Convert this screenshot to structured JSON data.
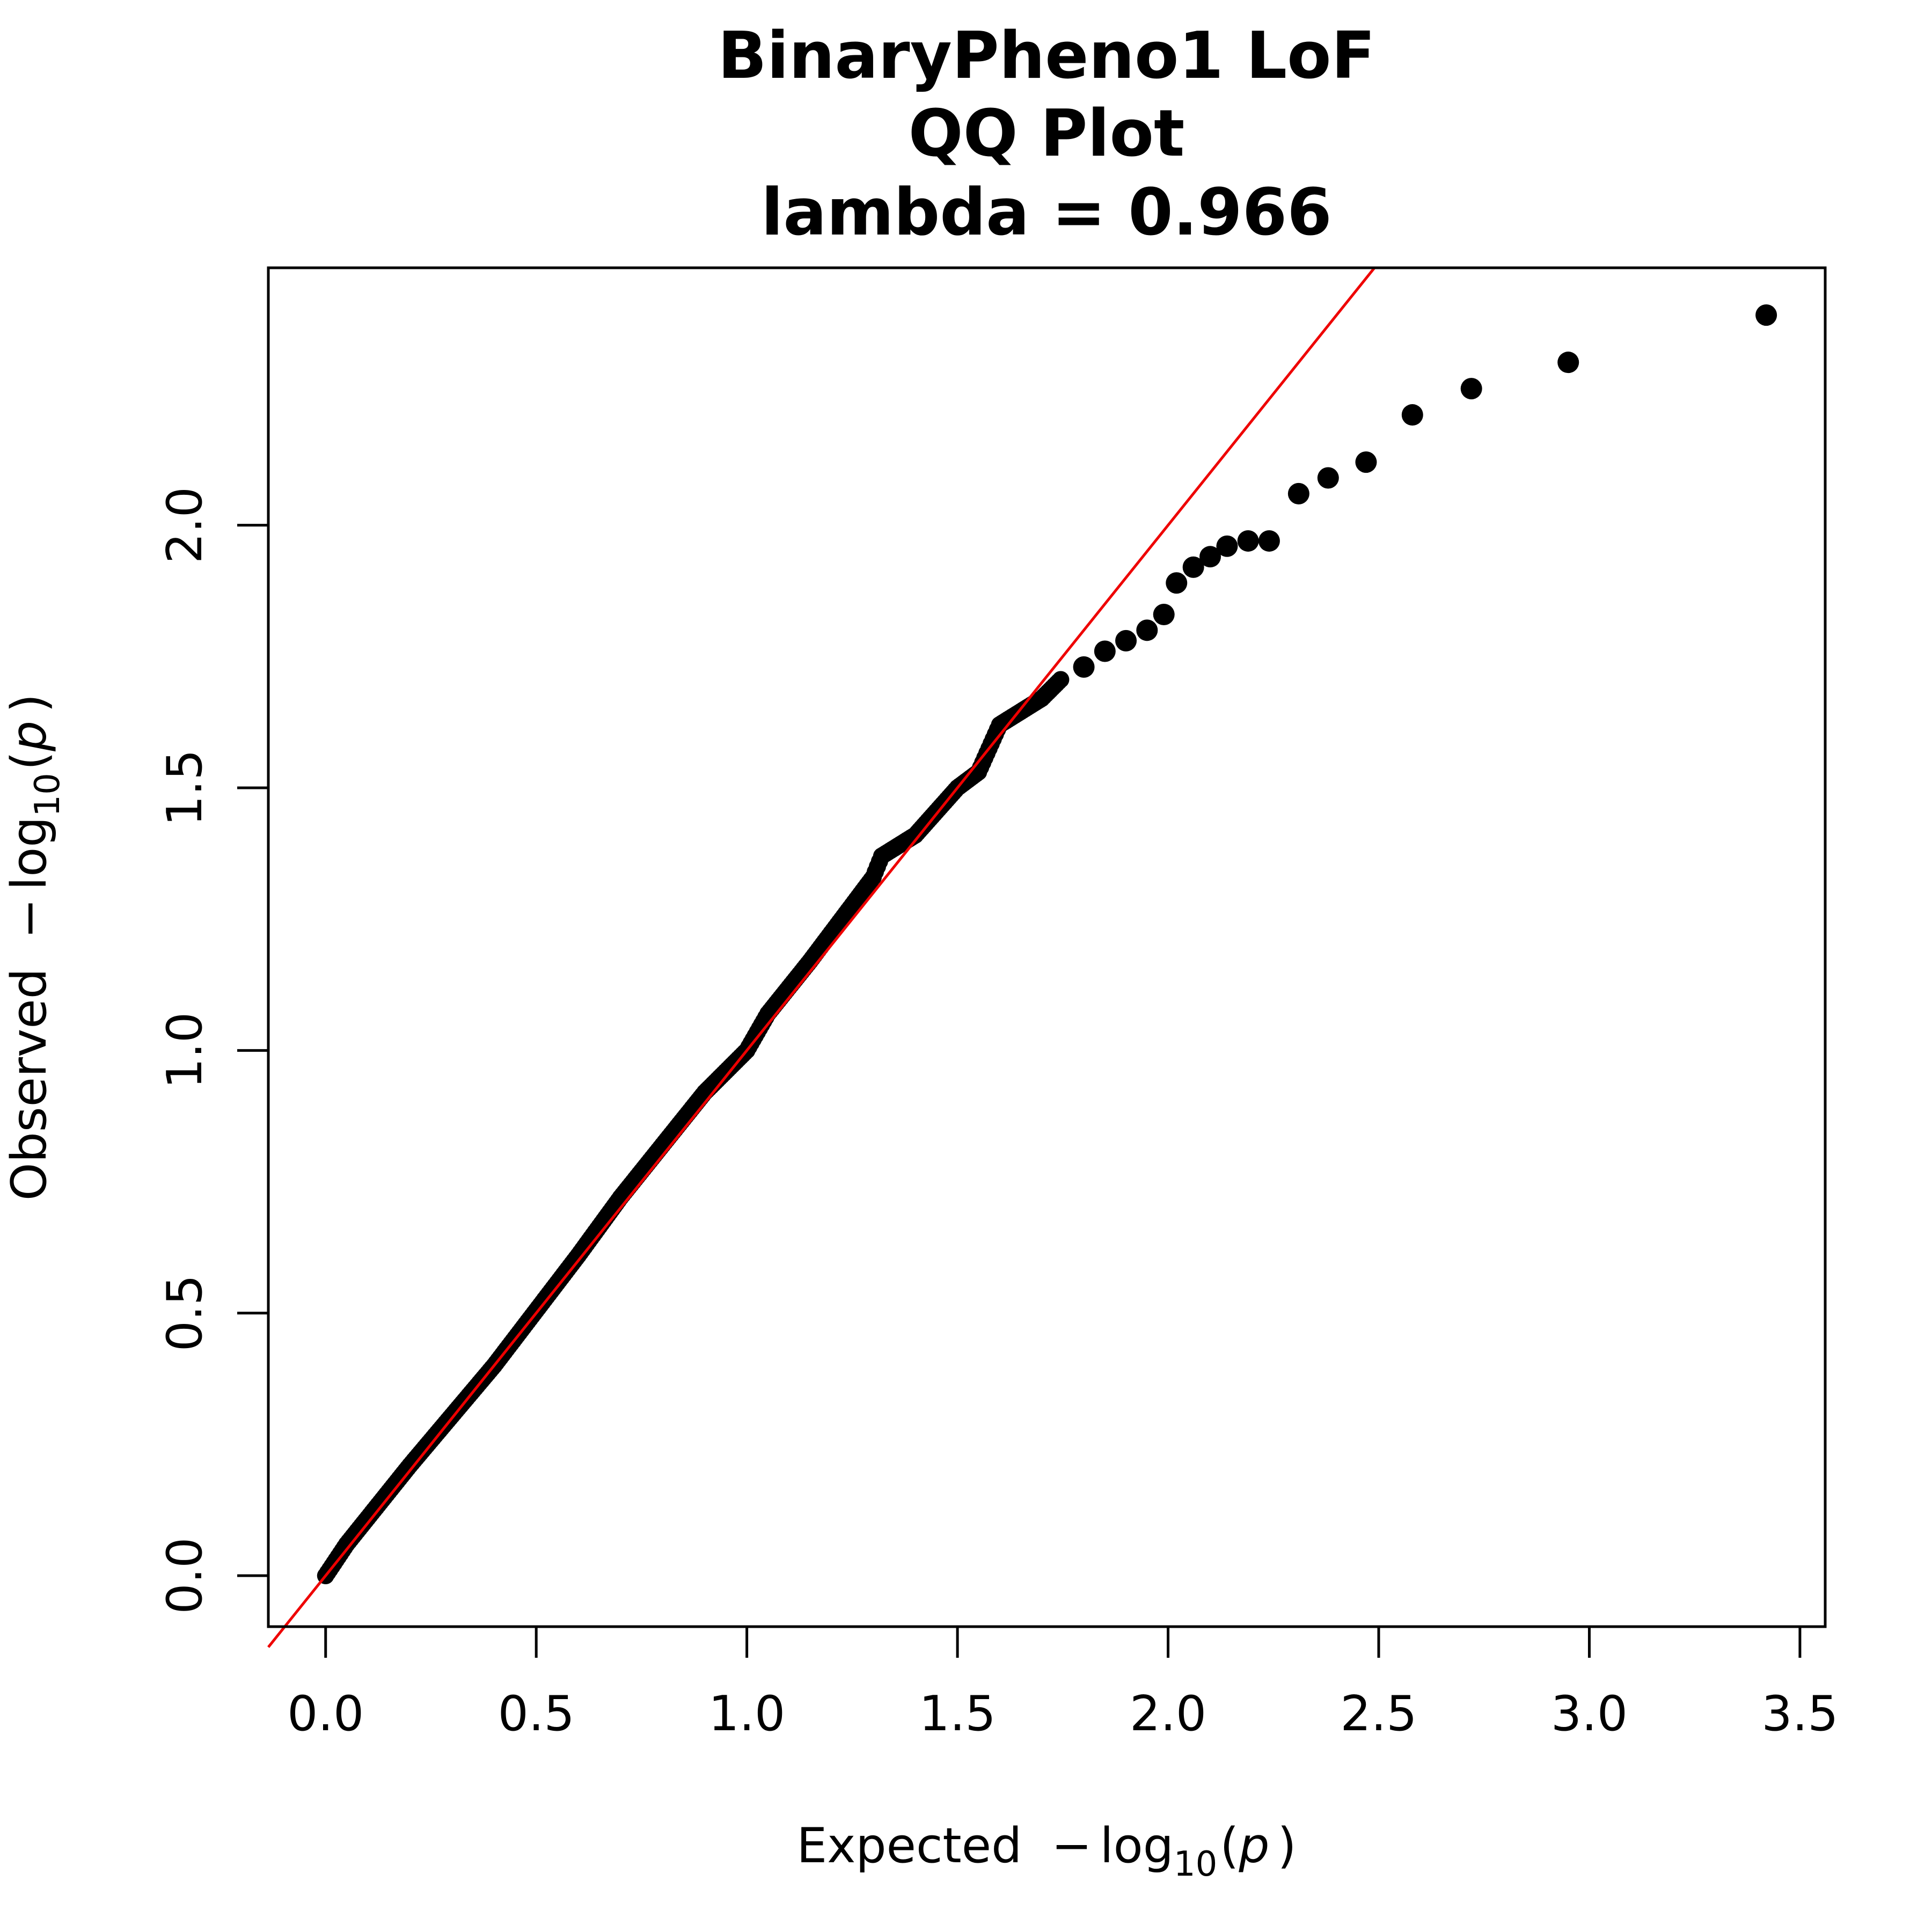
{
  "chart_data": {
    "type": "scatter",
    "title": [
      "BinaryPheno1 LoF",
      "QQ Plot",
      "lambda = 0.966"
    ],
    "xlabel": {
      "prefix": "Expected",
      "minus": "−",
      "log": "log",
      "sub": "10",
      "paren_open": "(",
      "var": "p",
      "paren_close": ")"
    },
    "ylabel": {
      "prefix": "Observed",
      "minus": "−",
      "log": "log",
      "sub": "10",
      "paren_open": "(",
      "var": "p",
      "paren_close": ")"
    },
    "xlim": [
      -0.136,
      3.56
    ],
    "ylim": [
      -0.097,
      2.49
    ],
    "xticks": [
      0.0,
      0.5,
      1.0,
      1.5,
      2.0,
      2.5,
      3.0,
      3.5
    ],
    "xtick_labels": [
      "0.0",
      "0.5",
      "1.0",
      "1.5",
      "2.0",
      "2.5",
      "3.0",
      "3.5"
    ],
    "yticks": [
      0.0,
      0.5,
      1.0,
      1.5,
      2.0
    ],
    "ytick_labels": [
      "0.0",
      "0.5",
      "1.0",
      "1.5",
      "2.0"
    ],
    "reference_line": {
      "slope": 1,
      "intercept": 0,
      "color": "#ee0000"
    },
    "point_color": "#000000",
    "bulk_segments": [
      [
        0.0,
        0.0
      ],
      [
        0.05,
        0.06
      ],
      [
        0.2,
        0.21
      ],
      [
        0.4,
        0.4
      ],
      [
        0.6,
        0.61
      ],
      [
        0.7,
        0.72
      ],
      [
        0.8,
        0.82
      ],
      [
        0.9,
        0.92
      ],
      [
        1.0,
        1.0
      ],
      [
        1.05,
        1.07
      ],
      [
        1.15,
        1.17
      ],
      [
        1.3,
        1.33
      ],
      [
        1.32,
        1.37
      ],
      [
        1.4,
        1.41
      ],
      [
        1.5,
        1.5
      ],
      [
        1.55,
        1.53
      ],
      [
        1.6,
        1.62
      ],
      [
        1.7,
        1.67
      ],
      [
        1.75,
        1.71
      ]
    ],
    "points": [
      [
        1.8,
        1.73
      ],
      [
        1.85,
        1.76
      ],
      [
        1.9,
        1.78
      ],
      [
        1.95,
        1.8
      ],
      [
        1.99,
        1.83
      ],
      [
        2.02,
        1.89
      ],
      [
        2.06,
        1.92
      ],
      [
        2.1,
        1.94
      ],
      [
        2.14,
        1.96
      ],
      [
        2.19,
        1.97
      ],
      [
        2.24,
        1.97
      ],
      [
        2.31,
        2.06
      ],
      [
        2.38,
        2.09
      ],
      [
        2.47,
        2.12
      ],
      [
        2.58,
        2.21
      ],
      [
        2.72,
        2.26
      ],
      [
        2.95,
        2.31
      ],
      [
        3.42,
        2.4
      ]
    ]
  }
}
